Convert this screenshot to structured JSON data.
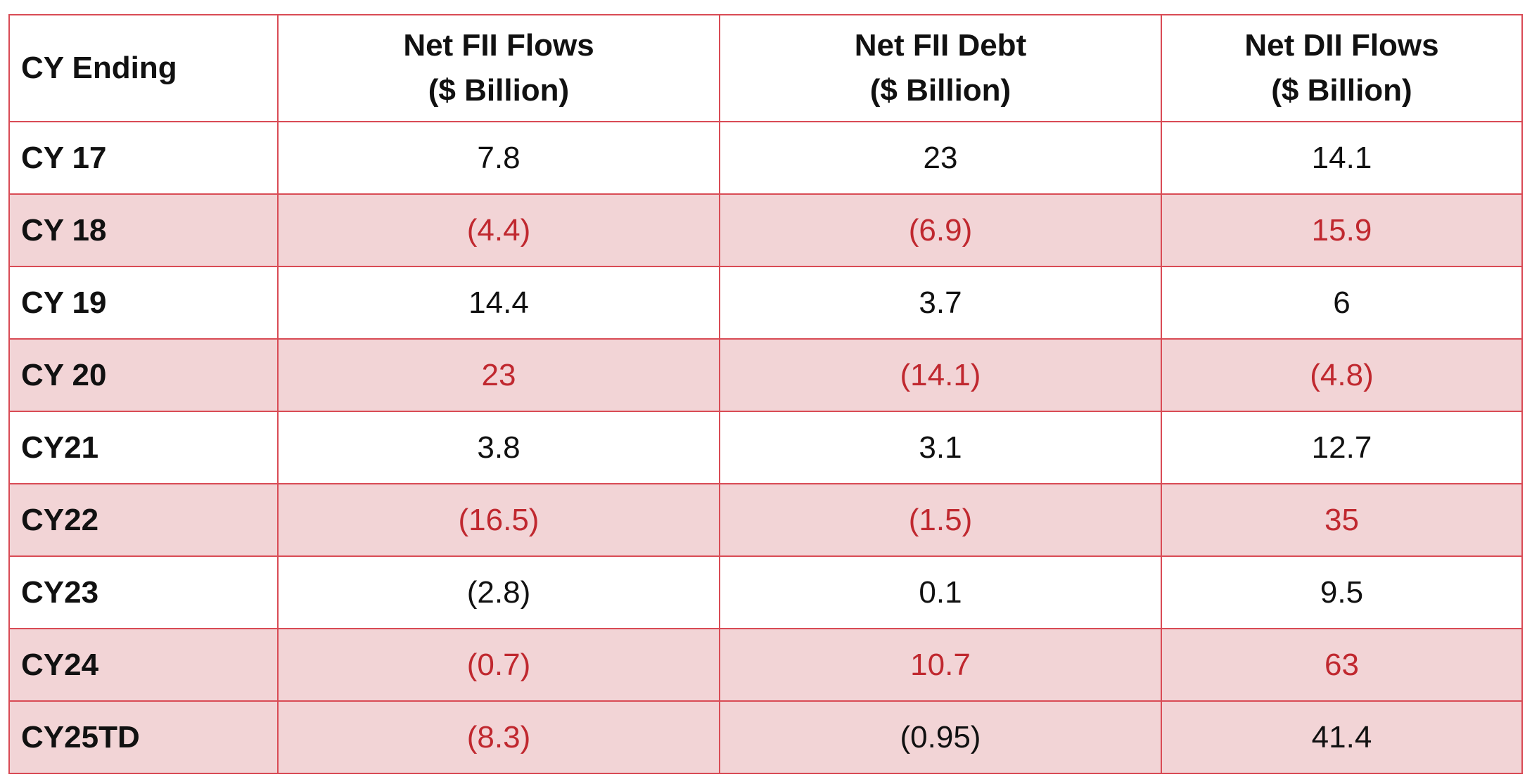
{
  "table": {
    "headers": [
      [
        "CY Ending"
      ],
      [
        "Net FII Flows",
        "($ Billion)"
      ],
      [
        "Net FII Debt",
        "($ Billion)"
      ],
      [
        "Net DII Flows",
        "($ Billion)"
      ]
    ],
    "rows": [
      {
        "label": "CY 17",
        "values": [
          "7.8",
          "23",
          "14.1"
        ],
        "shaded": false
      },
      {
        "label": "CY 18",
        "values": [
          "(4.4)",
          "(6.9)",
          "15.9"
        ],
        "shaded": true
      },
      {
        "label": "CY 19",
        "values": [
          "14.4",
          "3.7",
          "6"
        ],
        "shaded": false
      },
      {
        "label": "CY 20",
        "values": [
          "23",
          "(14.1)",
          "(4.8)"
        ],
        "shaded": true
      },
      {
        "label": "CY21",
        "values": [
          "3.8",
          "3.1",
          "12.7"
        ],
        "shaded": false
      },
      {
        "label": "CY22",
        "values": [
          "(16.5)",
          "(1.5)",
          "35"
        ],
        "shaded": true
      },
      {
        "label": "CY23",
        "values": [
          "(2.8)",
          "0.1",
          "9.5"
        ],
        "shaded": false
      },
      {
        "label": "CY24",
        "values": [
          "(0.7)",
          "10.7",
          "63"
        ],
        "shaded": true
      },
      {
        "label": "CY25TD",
        "values": [
          "(8.3)",
          "(0.95)",
          "41.4"
        ],
        "shaded": true,
        "value_colors": [
          "red",
          "black",
          "black"
        ]
      }
    ]
  },
  "colors": {
    "border": "#d94b55",
    "shaded_background": "#f2d4d6",
    "shaded_text": "#c0282f",
    "text": "#111111"
  }
}
